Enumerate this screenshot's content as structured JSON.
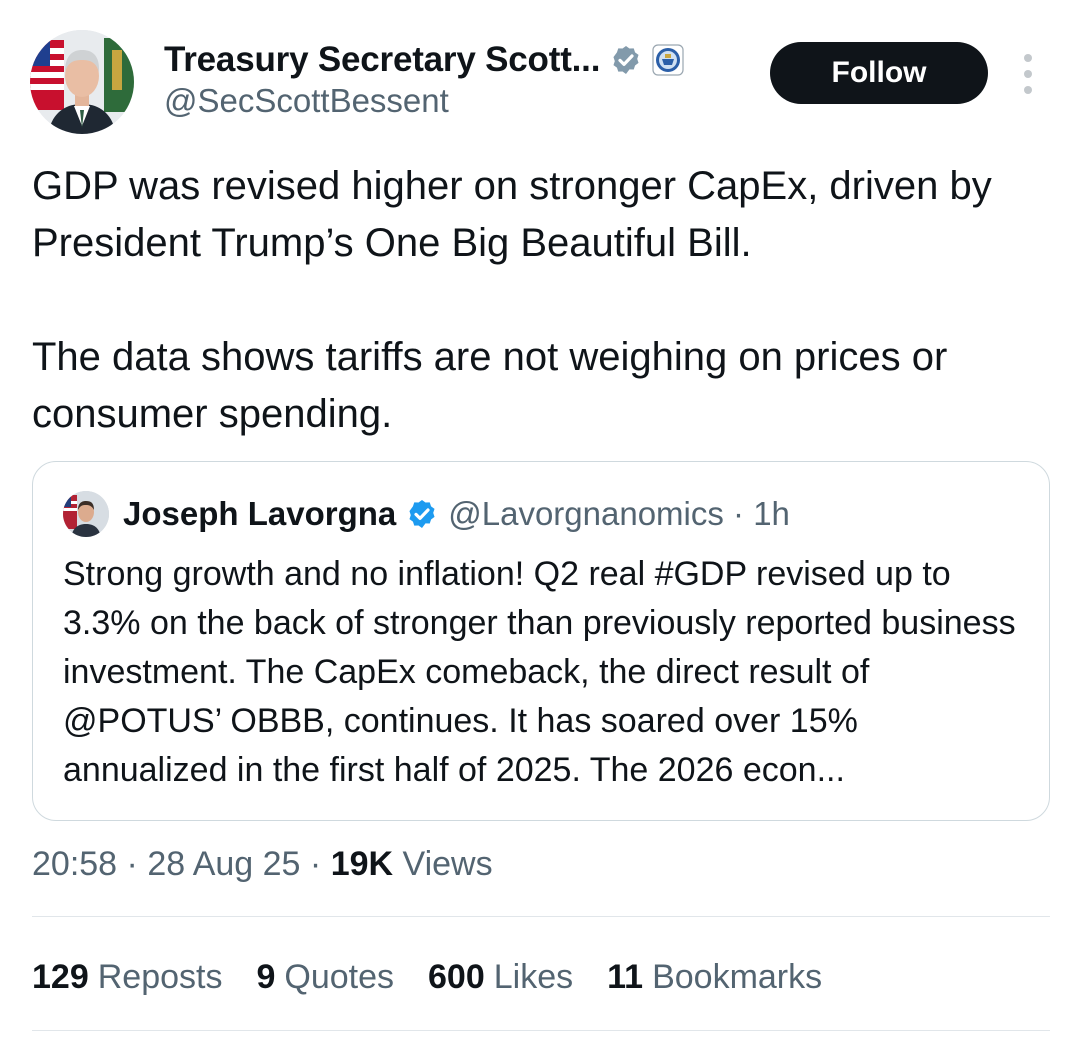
{
  "tweet": {
    "author": {
      "display_name": "Treasury Secretary Scott...",
      "handle": "@SecScottBessent"
    },
    "follow_label": "Follow",
    "text_paragraphs": [
      "GDP was revised higher on stronger CapEx, driven by President Trump’s One Big Beautiful Bill.",
      "The data shows tariffs are not weighing on prices or consumer spending."
    ],
    "quote": {
      "display_name": "Joseph Lavorgna",
      "handle_time": "@Lavorgnanomics · 1h",
      "text": "Strong growth and no inflation! Q2 real #GDP revised up to 3.3% on the back of stronger than previously reported business investment. The CapEx comeback, the direct result of @POTUS’ OBBB, continues. It has soared over 15% annualized in the first half of 2025.  The 2026 econ..."
    },
    "meta": {
      "time": "20:58",
      "date": "28 Aug 25",
      "views_count": "19K",
      "views_label": "Views"
    },
    "stats": [
      {
        "count": "129",
        "label": "Reposts"
      },
      {
        "count": "9",
        "label": "Quotes"
      },
      {
        "count": "600",
        "label": "Likes"
      },
      {
        "count": "11",
        "label": "Bookmarks"
      }
    ]
  },
  "colors": {
    "text": "#0f1419",
    "secondary": "#536471",
    "verified_badge": "#829aab",
    "quote_verified": "#1d9bf0",
    "follow_bg": "#0f1419",
    "border": "#cfd9de"
  }
}
